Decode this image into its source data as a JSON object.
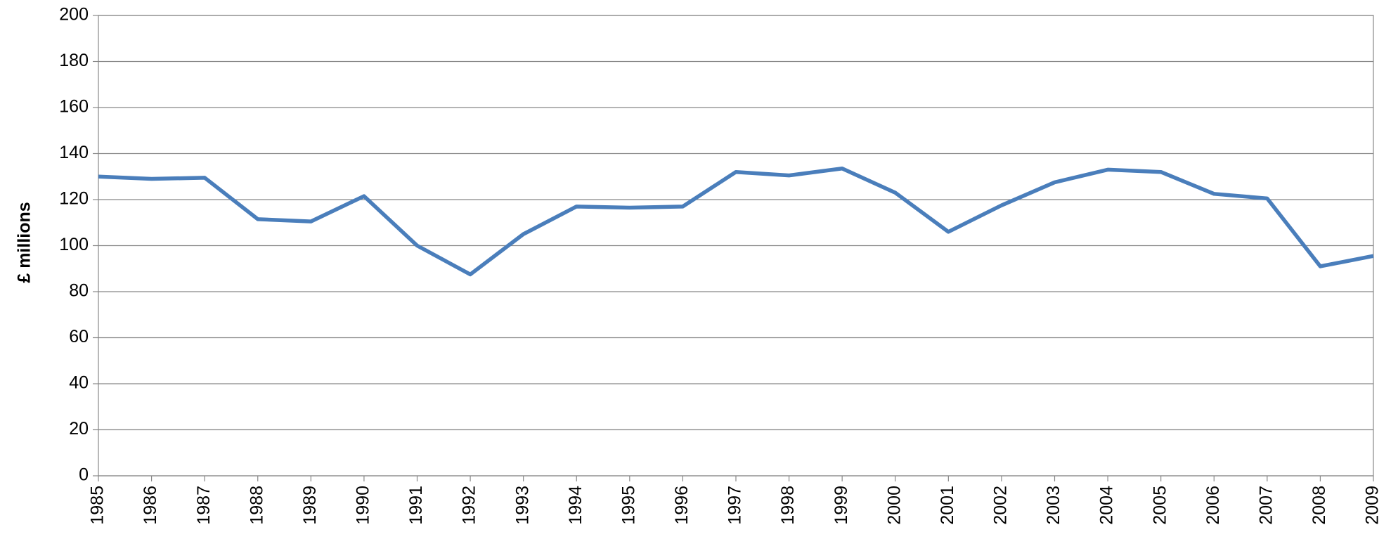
{
  "chart_data": {
    "type": "line",
    "y_label": "£ millions",
    "categories": [
      "1985",
      "1986",
      "1987",
      "1988",
      "1989",
      "1990",
      "1991",
      "1992",
      "1993",
      "1994",
      "1995",
      "1996",
      "1997",
      "1998",
      "1999",
      "2000",
      "2001",
      "2002",
      "2003",
      "2004",
      "2005",
      "2006",
      "2007",
      "2008",
      "2009"
    ],
    "series": [
      {
        "color": "#4a7ebb",
        "values": [
          130,
          129,
          129.5,
          111.5,
          110.5,
          121.5,
          100,
          87.5,
          105,
          117,
          116.5,
          117,
          132,
          130.5,
          133.5,
          123,
          106,
          117.5,
          127.5,
          133,
          132,
          122.5,
          120.5,
          91,
          95.5
        ]
      }
    ],
    "ylim": [
      0,
      200
    ],
    "yticks": [
      0,
      20,
      40,
      60,
      80,
      100,
      120,
      140,
      160,
      180,
      200
    ],
    "grid": true
  }
}
